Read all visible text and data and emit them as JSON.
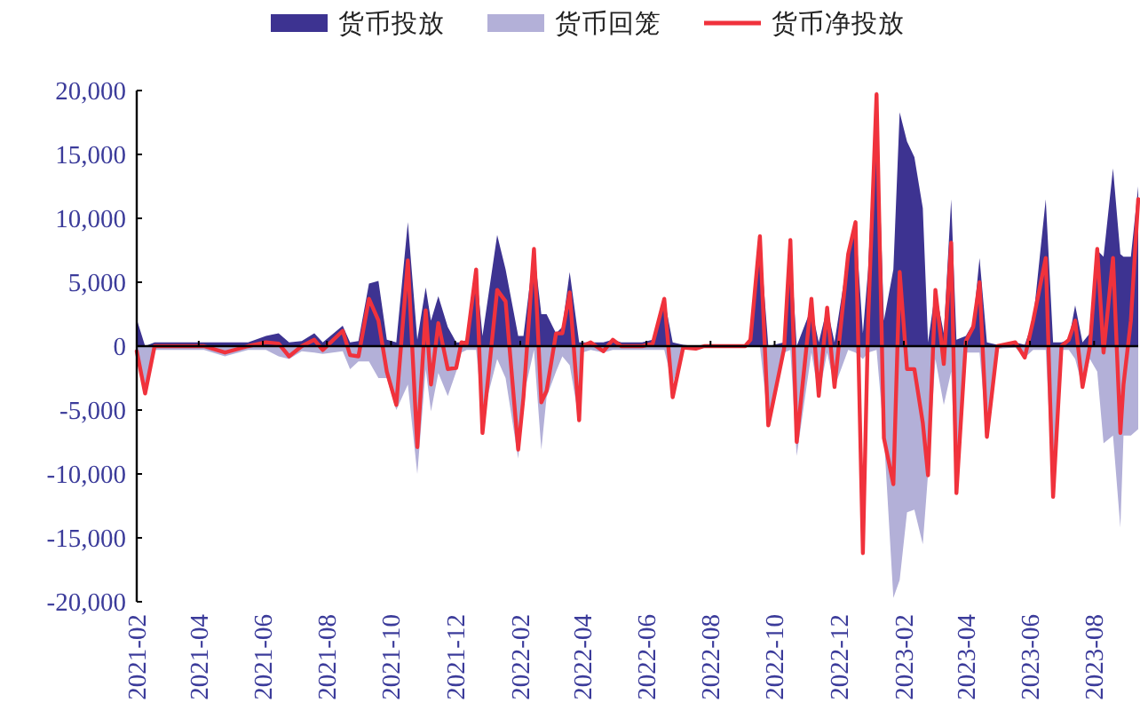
{
  "chart_data": {
    "type": "area",
    "legend": "top",
    "x": [
      "2021-02-01",
      "2021-02-09",
      "2021-02-18",
      "2021-03-12",
      "2021-04-06",
      "2021-04-26",
      "2021-05-18",
      "2021-06-04",
      "2021-06-16",
      "2021-06-26",
      "2021-07-08",
      "2021-07-20",
      "2021-07-28",
      "2021-08-16",
      "2021-08-23",
      "2021-08-31",
      "2021-09-10",
      "2021-09-19",
      "2021-09-27",
      "2021-10-06",
      "2021-10-17",
      "2021-10-26",
      "2021-11-03",
      "2021-11-08",
      "2021-11-15",
      "2021-11-24",
      "2021-12-02",
      "2021-12-07",
      "2021-12-12",
      "2021-12-21",
      "2021-12-27",
      "2022-01-10",
      "2022-01-18",
      "2022-01-30",
      "2022-02-04",
      "2022-02-14",
      "2022-02-21",
      "2022-02-26",
      "2022-03-07",
      "2022-03-13",
      "2022-03-20",
      "2022-03-29",
      "2022-04-01",
      "2022-04-09",
      "2022-04-21",
      "2022-04-30",
      "2022-05-08",
      "2022-05-28",
      "2022-06-07",
      "2022-06-18",
      "2022-06-26",
      "2022-07-06",
      "2022-07-18",
      "2022-07-26",
      "2022-09-03",
      "2022-09-08",
      "2022-09-17",
      "2022-09-25",
      "2022-10-10",
      "2022-10-16",
      "2022-10-22",
      "2022-11-05",
      "2022-11-12",
      "2022-11-20",
      "2022-11-27",
      "2022-12-10",
      "2022-12-17",
      "2022-12-24",
      "2022-12-29",
      "2023-01-06",
      "2023-01-13",
      "2023-01-22",
      "2023-01-28",
      "2023-02-04",
      "2023-02-11",
      "2023-02-19",
      "2023-02-24",
      "2023-03-03",
      "2023-03-11",
      "2023-03-18",
      "2023-03-23",
      "2023-04-01",
      "2023-04-08",
      "2023-04-14",
      "2023-04-21",
      "2023-05-01",
      "2023-05-18",
      "2023-05-27",
      "2023-06-04",
      "2023-06-16",
      "2023-06-23",
      "2023-07-01",
      "2023-07-08",
      "2023-07-14",
      "2023-07-21",
      "2023-07-28",
      "2023-08-04",
      "2023-08-10",
      "2023-08-19",
      "2023-08-26",
      "2023-08-29",
      "2023-09-05",
      "2023-09-12"
    ],
    "series": [
      {
        "name": "货币投放",
        "color": "#3d3391",
        "values": [
          2100,
          0,
          300,
          300,
          300,
          300,
          300,
          800,
          1000,
          300,
          400,
          1000,
          300,
          1600,
          300,
          400,
          4900,
          5100,
          500,
          300,
          9700,
          500,
          4600,
          2000,
          3900,
          1500,
          300,
          300,
          500,
          6000,
          800,
          8700,
          6000,
          800,
          800,
          7500,
          2500,
          2500,
          1000,
          1500,
          5800,
          300,
          300,
          300,
          300,
          500,
          300,
          300,
          500,
          3700,
          300,
          100,
          0,
          0,
          0,
          800,
          8600,
          0,
          300,
          8300,
          0,
          3000,
          300,
          3000,
          300,
          7200,
          9700,
          1000,
          6000,
          20000,
          2000,
          6000,
          18300,
          16000,
          14800,
          10800,
          300,
          4400,
          1000,
          11500,
          500,
          800,
          1800,
          6900,
          300,
          100,
          300,
          100,
          2000,
          11500,
          300,
          300,
          500,
          3200,
          300,
          1000,
          7500,
          7000,
          13900,
          7200,
          7000,
          7000,
          12500
        ]
      },
      {
        "name": "货币回笼",
        "color": "#b3b0d8",
        "values": [
          -300,
          -3700,
          -300,
          -300,
          -300,
          -800,
          -300,
          -300,
          -800,
          -1000,
          -400,
          -500,
          -600,
          -400,
          -1800,
          -1200,
          -1200,
          -2500,
          -2500,
          -5000,
          -3000,
          -10000,
          -1800,
          -5100,
          -2100,
          -3900,
          -2000,
          -500,
          -300,
          -300,
          -5500,
          -1000,
          -2500,
          -8800,
          -4000,
          -300,
          -8100,
          -4000,
          -2000,
          -800,
          -1500,
          -5800,
          -500,
          -300,
          -500,
          -300,
          -300,
          -300,
          -300,
          -300,
          -3000,
          -200,
          -200,
          0,
          0,
          0,
          0,
          -6000,
          -500,
          -300,
          -8600,
          -500,
          -3900,
          -500,
          -3200,
          -300,
          -500,
          -1000,
          -500,
          -300,
          -7000,
          -19700,
          -18300,
          -13000,
          -12800,
          -15500,
          -10000,
          -1000,
          -4600,
          -2000,
          -11500,
          -500,
          -500,
          -500,
          -7100,
          -200,
          -100,
          -900,
          -300,
          -300,
          -11800,
          -300,
          -300,
          -1000,
          -3200,
          -1000,
          -2000,
          -7600,
          -7000,
          -14200,
          -7000,
          -7000,
          -6500
        ]
      },
      {
        "name": "货币净投放",
        "type": "line",
        "color": "#f0323c",
        "values": [
          -400,
          -3700,
          0,
          0,
          0,
          -500,
          0,
          300,
          200,
          -800,
          0,
          500,
          -300,
          1200,
          -700,
          -800,
          3700,
          2000,
          -2000,
          -4600,
          6700,
          -7900,
          2800,
          -3000,
          1800,
          -1800,
          -1700,
          300,
          200,
          6000,
          -6800,
          4400,
          3500,
          -8100,
          -4000,
          7600,
          -4400,
          -3500,
          1000,
          1000,
          4200,
          -5800,
          0,
          300,
          -400,
          500,
          0,
          0,
          200,
          3700,
          -4000,
          -100,
          -200,
          0,
          0,
          500,
          8600,
          -6200,
          -200,
          8300,
          -7500,
          3700,
          -3900,
          3000,
          -3200,
          7200,
          9700,
          -16200,
          2000,
          19700,
          -7200,
          -10800,
          5800,
          -1800,
          -1800,
          -6000,
          -10100,
          4400,
          -1400,
          8100,
          -11500,
          400,
          1500,
          5000,
          -7100,
          0,
          300,
          -900,
          2000,
          6900,
          -11800,
          0,
          500,
          2000,
          -3200,
          0,
          7600,
          -500,
          6900,
          -6800,
          -3000,
          2000,
          11500
        ]
      }
    ],
    "xlim": [
      "2021-02-01",
      "2023-09-12"
    ],
    "ylim": [
      -20000,
      20000
    ],
    "xticks": [
      "2021-02",
      "2021-04",
      "2021-06",
      "2021-08",
      "2021-10",
      "2021-12",
      "2022-02",
      "2022-04",
      "2022-06",
      "2022-08",
      "2022-10",
      "2022-12",
      "2023-02",
      "2023-04",
      "2023-06",
      "2023-08"
    ],
    "yticks": [
      {
        "value": -20000,
        "label": "-20,000"
      },
      {
        "value": -15000,
        "label": "-15,000"
      },
      {
        "value": -10000,
        "label": "-10,000"
      },
      {
        "value": -5000,
        "label": "-5,000"
      },
      {
        "value": 0,
        "label": "0"
      },
      {
        "value": 5000,
        "label": "5,000"
      },
      {
        "value": 10000,
        "label": "10,000"
      },
      {
        "value": 15000,
        "label": "15,000"
      },
      {
        "value": 20000,
        "label": "20,000"
      }
    ]
  }
}
